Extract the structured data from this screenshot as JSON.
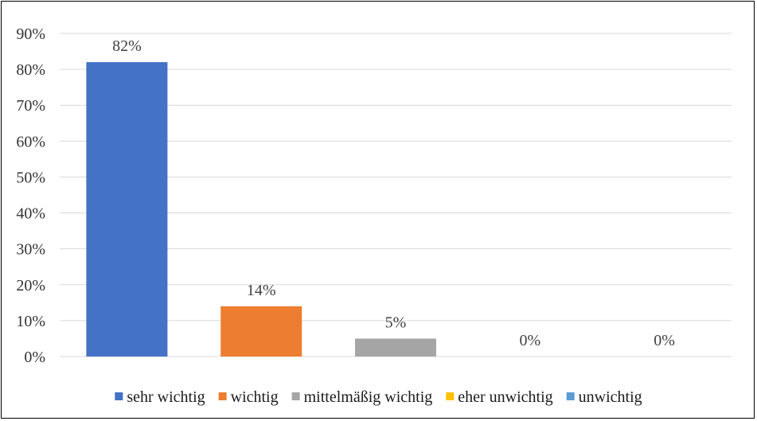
{
  "chart_data": {
    "type": "bar",
    "categories": [
      "sehr wichtig",
      "wichtig",
      "mittelmäßig wichtig",
      "eher unwichtig",
      "unwichtig"
    ],
    "values": [
      82,
      14,
      5,
      0,
      0
    ],
    "data_labels": [
      "82%",
      "14%",
      "5%",
      "0%",
      "0%"
    ],
    "colors": [
      "#4472C4",
      "#ED7D31",
      "#A5A5A5",
      "#FFC000",
      "#5B9BD5"
    ],
    "ylim": [
      0,
      90
    ],
    "y_ticks": [
      0,
      10,
      20,
      30,
      40,
      50,
      60,
      70,
      80,
      90
    ],
    "y_tick_labels": [
      "0%",
      "10%",
      "20%",
      "30%",
      "40%",
      "50%",
      "60%",
      "70%",
      "80%",
      "90%"
    ],
    "grid": true,
    "legend_position": "bottom",
    "title": "",
    "xlabel": "",
    "ylabel": ""
  }
}
